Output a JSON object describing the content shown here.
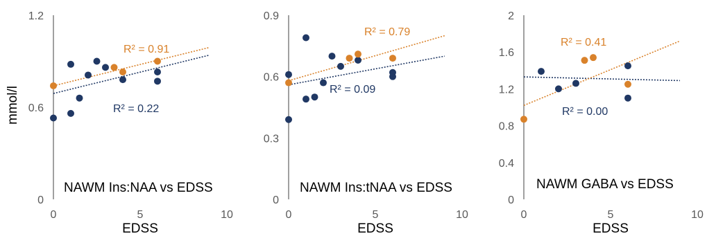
{
  "colors": {
    "navy": "#203864",
    "orange": "#d9822b",
    "axis": "#404040",
    "text": "#595959"
  },
  "chart_data": [
    {
      "type": "scatter",
      "title": "NAWM Ins:NAA vs EDSS",
      "xlabel": "EDSS",
      "ylabel": "mmol/l",
      "xlim": [
        0,
        10
      ],
      "ylim": [
        0,
        1.2
      ],
      "xticks": [
        "0",
        "5",
        "10"
      ],
      "yticks": [
        "0",
        "0.6",
        "1.2"
      ],
      "yticks_values": [
        0,
        0.6,
        1.2
      ],
      "grid": false,
      "series": [
        {
          "color": "navy",
          "points": [
            [
              0,
              0.53
            ],
            [
              1,
              0.88
            ],
            [
              1,
              0.56
            ],
            [
              1.5,
              0.66
            ],
            [
              2,
              0.81
            ],
            [
              2.5,
              0.9
            ],
            [
              3,
              0.86
            ],
            [
              4,
              0.78
            ],
            [
              6,
              0.83
            ],
            [
              6,
              0.77
            ]
          ],
          "trend": {
            "y0": 0.69,
            "y1": 0.94,
            "x1": 9
          },
          "r2": "R² = 0.22"
        },
        {
          "color": "orange",
          "points": [
            [
              0,
              0.74
            ],
            [
              3.5,
              0.86
            ],
            [
              4,
              0.83
            ],
            [
              6,
              0.9
            ]
          ],
          "trend": {
            "y0": 0.74,
            "y1": 0.99,
            "x1": 9
          },
          "r2": "R² = 0.91"
        }
      ]
    },
    {
      "type": "scatter",
      "title": "NAWM Ins:tNAA vs EDSS",
      "xlabel": "EDSS",
      "ylabel": "",
      "xlim": [
        0,
        10
      ],
      "ylim": [
        0,
        0.9
      ],
      "xticks": [
        "0",
        "5",
        "10"
      ],
      "yticks": [
        "0",
        "0.3",
        "0.6",
        "0.9"
      ],
      "yticks_values": [
        0,
        0.3,
        0.6,
        0.9
      ],
      "grid": false,
      "series": [
        {
          "color": "navy",
          "points": [
            [
              0,
              0.39
            ],
            [
              0,
              0.61
            ],
            [
              1,
              0.79
            ],
            [
              1,
              0.49
            ],
            [
              1.5,
              0.5
            ],
            [
              2,
              0.57
            ],
            [
              2.5,
              0.7
            ],
            [
              3,
              0.65
            ],
            [
              4,
              0.68
            ],
            [
              6,
              0.62
            ],
            [
              6,
              0.6
            ]
          ],
          "trend": {
            "y0": 0.56,
            "y1": 0.7,
            "x1": 9
          },
          "r2": "R² = 0.09"
        },
        {
          "color": "orange",
          "points": [
            [
              0,
              0.57
            ],
            [
              3.5,
              0.69
            ],
            [
              4,
              0.71
            ],
            [
              6,
              0.69
            ]
          ],
          "trend": {
            "y0": 0.58,
            "y1": 0.8,
            "x1": 9
          },
          "r2": "R² = 0.79"
        }
      ]
    },
    {
      "type": "scatter",
      "title": "NAWM GABA vs EDSS",
      "xlabel": "EDSS",
      "ylabel": "",
      "xlim": [
        0,
        10
      ],
      "ylim": [
        0,
        2
      ],
      "xticks": [
        "0",
        "5",
        "10"
      ],
      "yticks": [
        "0",
        "0.4",
        "0.8",
        "1.2",
        "1.6",
        "2"
      ],
      "yticks_values": [
        0,
        0.4,
        0.8,
        1.2,
        1.6,
        2
      ],
      "grid": false,
      "series": [
        {
          "color": "navy",
          "points": [
            [
              1,
              1.39
            ],
            [
              2,
              1.2
            ],
            [
              3,
              1.26
            ],
            [
              6,
              1.45
            ],
            [
              6,
              1.1
            ]
          ],
          "trend": {
            "y0": 1.33,
            "y1": 1.29,
            "x1": 9
          },
          "r2": "R² = 0.00"
        },
        {
          "color": "orange",
          "points": [
            [
              0,
              0.87
            ],
            [
              3.5,
              1.51
            ],
            [
              4,
              1.54
            ],
            [
              6,
              1.25
            ]
          ],
          "trend": {
            "y0": 1.02,
            "y1": 1.72,
            "x1": 9
          },
          "r2": "R² = 0.41"
        }
      ]
    }
  ]
}
